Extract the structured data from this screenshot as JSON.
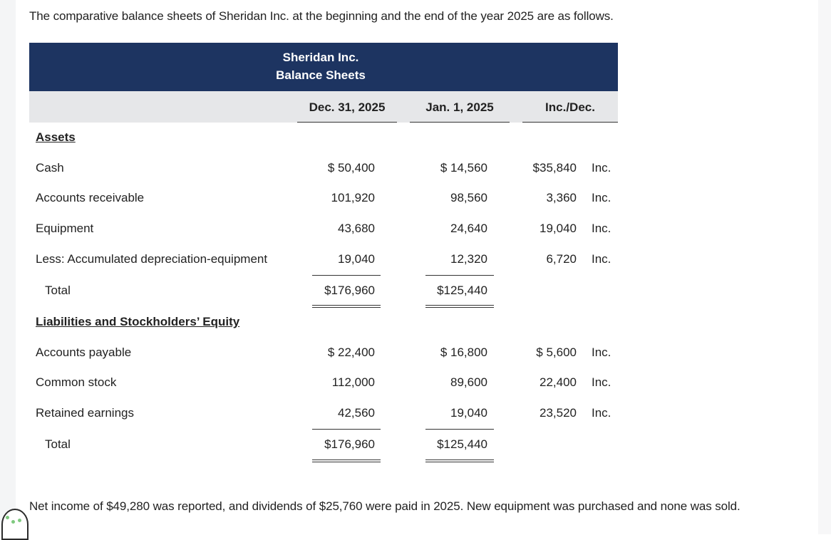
{
  "intro_text": "The comparative balance sheets of Sheridan Inc. at the beginning and the end of the year 2025 are as follows.",
  "header": {
    "company": "Sheridan Inc.",
    "statement": "Balance Sheets"
  },
  "columns": {
    "dec": "Dec. 31, 2025",
    "jan": "Jan. 1, 2025",
    "chg": "Inc./Dec."
  },
  "assets": {
    "heading": "Assets",
    "rows": [
      {
        "label": "Cash",
        "dec": "$ 50,400",
        "jan": "$ 14,560",
        "change": "$35,840",
        "dir": "Inc."
      },
      {
        "label": "Accounts receivable",
        "dec": "101,920",
        "jan": "98,560",
        "change": "3,360",
        "dir": "Inc."
      },
      {
        "label": "Equipment",
        "dec": "43,680",
        "jan": "24,640",
        "change": "19,040",
        "dir": "Inc."
      },
      {
        "label": "Less: Accumulated depreciation-equipment",
        "dec": "19,040",
        "jan": "12,320",
        "change": "6,720",
        "dir": "Inc."
      }
    ],
    "total": {
      "label": "Total",
      "dec": "$176,960",
      "jan": "$125,440"
    }
  },
  "liabilities": {
    "heading": "Liabilities and Stockholders’ Equity",
    "rows": [
      {
        "label": "Accounts payable",
        "dec": "$ 22,400",
        "jan": "$ 16,800",
        "change": "$ 5,600",
        "dir": "Inc."
      },
      {
        "label": "Common stock",
        "dec": "112,000",
        "jan": "89,600",
        "change": "22,400",
        "dir": "Inc."
      },
      {
        "label": "Retained earnings",
        "dec": "42,560",
        "jan": "19,040",
        "change": "23,520",
        "dir": "Inc."
      }
    ],
    "total": {
      "label": "Total",
      "dec": "$176,960",
      "jan": "$125,440"
    }
  },
  "footer_text": "Net income of $49,280 was reported, and dividends of $25,760 were paid in 2025. New equipment was purchased and none was sold."
}
